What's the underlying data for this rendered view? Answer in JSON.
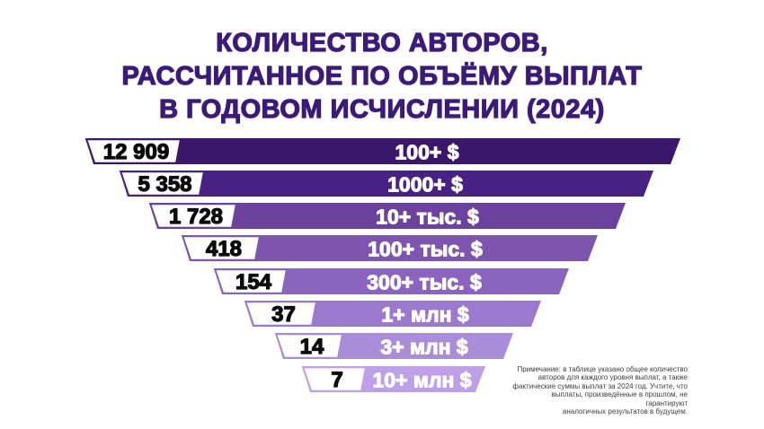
{
  "title": {
    "lines": [
      "КОЛИЧЕСТВО АВТОРОВ,",
      "РАССЧИТАННОЕ ПО ОБЪЁМУ ВЫПЛАТ",
      "В ГОДОВОМ ИСЧИСЛЕНИИ (2024)"
    ],
    "color": "#3b1b77"
  },
  "chart_data": {
    "type": "funnel",
    "title": "КОЛИЧЕСТВО АВТОРОВ, РАССЧИТАННОЕ ПО ОБЪЁМУ ВЫПЛАТ В ГОДОВОМ ИСЧИСЛЕНИИ (2024)",
    "categories": [
      "100+ $",
      "1000+ $",
      "10+ тыс. $",
      "100+ тыс. $",
      "300+ тыс. $",
      "1+ млн $",
      "3+ млн $",
      "10+ млн $"
    ],
    "values": [
      12909,
      5358,
      1728,
      418,
      154,
      37,
      14,
      7
    ],
    "rows": [
      {
        "count": "12 909",
        "tier": "100+ $",
        "color": "#3a176b"
      },
      {
        "count": "5 358",
        "tier": "1000+ $",
        "color": "#482184"
      },
      {
        "count": "1 728",
        "tier": "10+ тыс. $",
        "color": "#6b429d"
      },
      {
        "count": "418",
        "tier": "100+ тыс. $",
        "color": "#7d55ae"
      },
      {
        "count": "154",
        "tier": "300+ тыс. $",
        "color": "#8b64bf"
      },
      {
        "count": "37",
        "tier": "1+ млн $",
        "color": "#9b79ce"
      },
      {
        "count": "14",
        "tier": "3+ млн $",
        "color": "#aa8dd9"
      },
      {
        "count": "7",
        "tier": "10+ млн $",
        "color": "#bda0e5"
      }
    ],
    "count_box_fill": "#ffffff",
    "count_text_color": "#0a0a0a",
    "tier_text_color": "#ffffff",
    "legend": "none",
    "grid": "off"
  },
  "footnote": {
    "lines": [
      "Примечание: в таблице указано общее количество",
      "авторов для каждого уровня выплат, а также",
      "фактические суммы выплат за 2024 год. Учтите, что",
      "выплаты, произведённые в прошлом, не гарантируют",
      "аналогичных результатов в будущем."
    ]
  }
}
